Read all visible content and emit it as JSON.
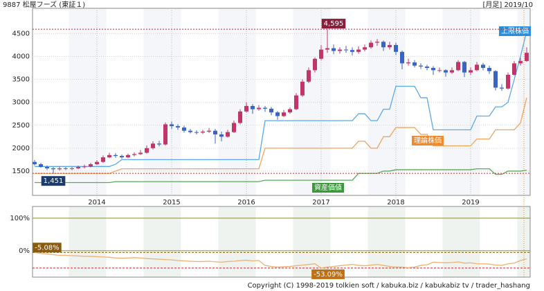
{
  "header": {
    "left": "9887 松屋フーズ (東証１)",
    "right": "[月足] 2019/10"
  },
  "footer": "Copyright (C) 1998-2019 tolkien soft / kabuka.biz / kabukabiz tv / trader_hashang",
  "chart_data": [
    {
      "type": "candlestick",
      "categories": [
        null,
        null,
        null,
        null,
        null,
        null,
        null,
        null,
        null,
        null,
        "2014",
        null,
        null,
        null,
        null,
        null,
        null,
        null,
        null,
        null,
        null,
        null,
        "2015",
        null,
        null,
        null,
        null,
        null,
        null,
        null,
        null,
        null,
        null,
        null,
        "2016",
        null,
        null,
        null,
        null,
        null,
        null,
        null,
        null,
        null,
        null,
        null,
        "2017",
        null,
        null,
        null,
        null,
        null,
        null,
        null,
        null,
        null,
        null,
        null,
        "2018",
        null,
        null,
        null,
        null,
        null,
        null,
        null,
        null,
        null,
        null,
        null,
        "2019",
        null,
        null,
        null,
        null,
        null,
        null,
        null,
        null,
        null
      ],
      "ohlc": [
        [
          1700,
          1740,
          1620,
          1650
        ],
        [
          1650,
          1680,
          1570,
          1590
        ],
        [
          1590,
          1620,
          1520,
          1560
        ],
        [
          1560,
          1590,
          1451,
          1540
        ],
        [
          1540,
          1600,
          1510,
          1560
        ],
        [
          1560,
          1590,
          1520,
          1550
        ],
        [
          1550,
          1590,
          1520,
          1560
        ],
        [
          1560,
          1620,
          1540,
          1590
        ],
        [
          1590,
          1640,
          1560,
          1600
        ],
        [
          1600,
          1680,
          1580,
          1650
        ],
        [
          1650,
          1740,
          1630,
          1700
        ],
        [
          1700,
          1840,
          1680,
          1800
        ],
        [
          1800,
          1900,
          1780,
          1850
        ],
        [
          1850,
          1890,
          1790,
          1830
        ],
        [
          1830,
          1860,
          1770,
          1800
        ],
        [
          1800,
          1880,
          1780,
          1850
        ],
        [
          1850,
          1910,
          1820,
          1870
        ],
        [
          1870,
          1960,
          1850,
          1900
        ],
        [
          1900,
          2060,
          1880,
          2000
        ],
        [
          2000,
          2150,
          1970,
          2100
        ],
        [
          2100,
          2160,
          2040,
          2080
        ],
        [
          2080,
          2560,
          2060,
          2520
        ],
        [
          2520,
          2580,
          2420,
          2480
        ],
        [
          2480,
          2520,
          2400,
          2450
        ],
        [
          2450,
          2490,
          2340,
          2380
        ],
        [
          2380,
          2420,
          2320,
          2350
        ],
        [
          2350,
          2390,
          2300,
          2340
        ],
        [
          2340,
          2400,
          2310,
          2360
        ],
        [
          2360,
          2440,
          2330,
          2380
        ],
        [
          2380,
          2420,
          2100,
          2300
        ],
        [
          2300,
          2360,
          2150,
          2250
        ],
        [
          2250,
          2400,
          2230,
          2350
        ],
        [
          2350,
          2600,
          2330,
          2550
        ],
        [
          2550,
          2850,
          2520,
          2800
        ],
        [
          2800,
          3000,
          2780,
          2920
        ],
        [
          2920,
          2960,
          2750,
          2850
        ],
        [
          2850,
          2940,
          2820,
          2880
        ],
        [
          2880,
          2920,
          2790,
          2860
        ],
        [
          2860,
          2900,
          2720,
          2780
        ],
        [
          2780,
          2810,
          2620,
          2700
        ],
        [
          2700,
          2830,
          2680,
          2780
        ],
        [
          2780,
          2890,
          2750,
          2850
        ],
        [
          2850,
          3200,
          2830,
          3150
        ],
        [
          3150,
          3500,
          3120,
          3450
        ],
        [
          3450,
          3760,
          3420,
          3700
        ],
        [
          3700,
          3980,
          3650,
          3950
        ],
        [
          3950,
          4250,
          3920,
          4150
        ],
        [
          4150,
          4595,
          4080,
          4180
        ],
        [
          4180,
          4260,
          4050,
          4120
        ],
        [
          4120,
          4200,
          4060,
          4150
        ],
        [
          4150,
          4230,
          4080,
          4140
        ],
        [
          4140,
          4200,
          4020,
          4100
        ],
        [
          4100,
          4220,
          4060,
          4150
        ],
        [
          4150,
          4260,
          4110,
          4200
        ],
        [
          4200,
          4350,
          4170,
          4300
        ],
        [
          4300,
          4380,
          4230,
          4320
        ],
        [
          4320,
          4350,
          4120,
          4200
        ],
        [
          4200,
          4320,
          4150,
          4250
        ],
        [
          4250,
          4300,
          4030,
          4100
        ],
        [
          4100,
          4130,
          3720,
          3850
        ],
        [
          3850,
          3950,
          3800,
          3870
        ],
        [
          3870,
          3920,
          3760,
          3800
        ],
        [
          3800,
          3850,
          3730,
          3780
        ],
        [
          3780,
          3820,
          3700,
          3750
        ],
        [
          3750,
          3790,
          3600,
          3700
        ],
        [
          3700,
          3760,
          3650,
          3700
        ],
        [
          3700,
          3720,
          3560,
          3650
        ],
        [
          3650,
          3760,
          3620,
          3700
        ],
        [
          3700,
          3920,
          3680,
          3880
        ],
        [
          3880,
          3900,
          3550,
          3650
        ],
        [
          3650,
          3760,
          3600,
          3700
        ],
        [
          3700,
          3880,
          3680,
          3820
        ],
        [
          3820,
          3860,
          3700,
          3750
        ],
        [
          3750,
          3800,
          3620,
          3680
        ],
        [
          3680,
          3700,
          3260,
          3320
        ],
        [
          3320,
          3400,
          3250,
          3300
        ],
        [
          3300,
          3650,
          3280,
          3600
        ],
        [
          3600,
          3900,
          3580,
          3850
        ],
        [
          3850,
          3970,
          3800,
          3900
        ],
        [
          3900,
          4200,
          3880,
          4080
        ]
      ],
      "up_color": "#c2356b",
      "down_color": "#3a64c4",
      "series": [
        {
          "name": "上限株価",
          "color": "#5aa8ea",
          "values": [
            1600,
            1600,
            1600,
            1600,
            1600,
            1600,
            1600,
            1600,
            1600,
            1600,
            1600,
            1600,
            1600,
            1650,
            1750,
            1750,
            1750,
            1750,
            1750,
            1750,
            1750,
            1750,
            1750,
            1750,
            1750,
            1750,
            1750,
            1750,
            1750,
            1750,
            1750,
            1750,
            1750,
            1750,
            1750,
            1750,
            1750,
            2600,
            2600,
            2600,
            2600,
            2600,
            2600,
            2600,
            2600,
            2600,
            2600,
            2600,
            2600,
            2600,
            2600,
            2600,
            2750,
            2750,
            2600,
            2600,
            2850,
            2850,
            3350,
            3350,
            3350,
            3350,
            3100,
            3100,
            2400,
            2400,
            2400,
            2400,
            2400,
            2400,
            2400,
            2700,
            2700,
            2700,
            2900,
            2900,
            3000,
            3500,
            4000,
            4550
          ]
        },
        {
          "name": "理論株価",
          "color": "#f2a35a",
          "values": [
            1450,
            1450,
            1450,
            1450,
            1450,
            1450,
            1450,
            1450,
            1450,
            1450,
            1450,
            1450,
            1450,
            1500,
            1550,
            1550,
            1550,
            1550,
            1550,
            1550,
            1550,
            1550,
            1550,
            1550,
            1550,
            1550,
            1550,
            1550,
            1550,
            1550,
            1550,
            1550,
            1550,
            1550,
            1550,
            1550,
            1550,
            2000,
            2000,
            2000,
            2000,
            2000,
            2000,
            2000,
            2000,
            2000,
            2000,
            2000,
            2000,
            2000,
            2000,
            2000,
            2150,
            2150,
            2000,
            2000,
            2250,
            2250,
            2450,
            2450,
            2450,
            2450,
            2300,
            2300,
            2050,
            2050,
            2050,
            2050,
            2050,
            2050,
            2050,
            2200,
            2200,
            2200,
            2400,
            2400,
            2400,
            2400,
            2550,
            3100
          ]
        },
        {
          "name": "資産価値",
          "color": "#5aa85a",
          "values": [
            1250,
            1250,
            1250,
            1250,
            1250,
            1250,
            1250,
            1250,
            1250,
            1250,
            1250,
            1250,
            1250,
            1270,
            1270,
            1270,
            1270,
            1270,
            1270,
            1270,
            1270,
            1270,
            1270,
            1270,
            1270,
            1270,
            1270,
            1270,
            1270,
            1270,
            1270,
            1270,
            1270,
            1270,
            1270,
            1270,
            1270,
            1300,
            1300,
            1300,
            1300,
            1300,
            1300,
            1300,
            1300,
            1300,
            1300,
            1300,
            1300,
            1300,
            1300,
            1300,
            1450,
            1450,
            1450,
            1450,
            1500,
            1500,
            1530,
            1530,
            1530,
            1530,
            1530,
            1530,
            1530,
            1530,
            1530,
            1530,
            1530,
            1530,
            1530,
            1550,
            1550,
            1550,
            1430,
            1430,
            1500,
            1500,
            1500,
            1520
          ]
        }
      ],
      "series_label_colors": [
        "#2a8ee0",
        "#f08a30",
        "#3a9a3a"
      ],
      "price_marks": [
        {
          "value": 4595,
          "label": "4,595",
          "color": "#8a1c3c"
        },
        {
          "value": 1451,
          "label": "1,451",
          "color": "#1c3a6a"
        }
      ],
      "ylim": [
        970,
        5050
      ],
      "yticks": [
        1500,
        2000,
        2500,
        3000,
        3500,
        4000,
        4500
      ],
      "grid": true
    },
    {
      "type": "line",
      "series": [
        {
          "color": "#f0b070",
          "values": [
            -5.08,
            -8,
            -10,
            -12,
            -14,
            -14,
            -15,
            -16,
            -17,
            -17,
            -18,
            -19,
            -20,
            -22,
            -23,
            -22,
            -21,
            -22,
            -24,
            -25,
            -26,
            -27,
            -28,
            -30,
            -31,
            -32,
            -33,
            -33,
            -32,
            -34,
            -35,
            -33,
            -32,
            -30,
            -29,
            -31,
            -30,
            -45,
            -48,
            -50,
            -49,
            -48,
            -46,
            -44,
            -42,
            -40,
            -53.09,
            -50,
            -48,
            -46,
            -44,
            -42,
            -45,
            -46,
            -44,
            -42,
            -45,
            -48,
            -50,
            -50,
            -52,
            -50,
            -45,
            -43,
            -35,
            -36,
            -37,
            -36,
            -34,
            -38,
            -37,
            -40,
            -40,
            -41,
            -44,
            -45,
            -40,
            -38,
            -30,
            -25
          ]
        }
      ],
      "marks": [
        {
          "value": -5.08,
          "label": "-5.08%",
          "color": "#8a5a10"
        },
        {
          "value": -53.09,
          "label": "-53.09%",
          "color": "#c07010"
        }
      ],
      "ylim": [
        -81,
        136
      ],
      "yticks": [
        {
          "value": 100,
          "label": "100%"
        },
        {
          "value": 0,
          "label": "0%"
        }
      ]
    }
  ]
}
